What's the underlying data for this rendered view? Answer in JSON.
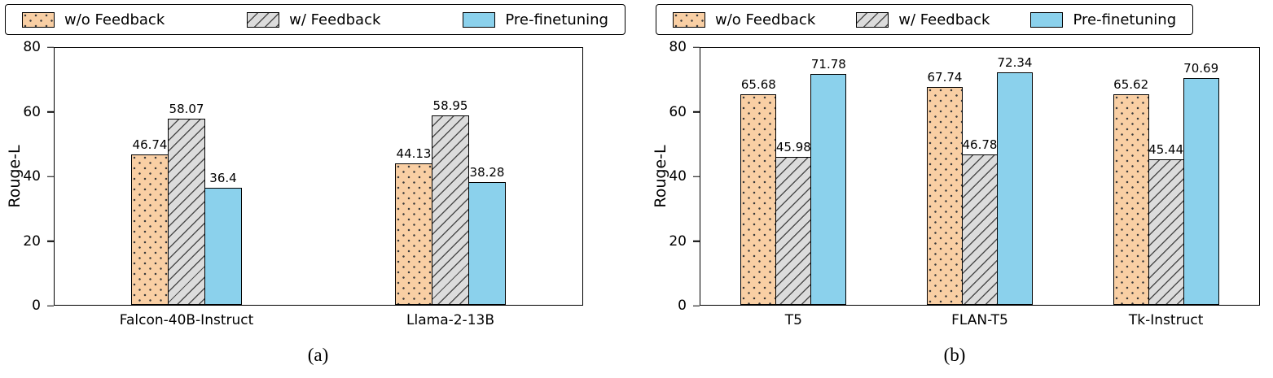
{
  "figure": {
    "background": "#ffffff"
  },
  "legend": {
    "entries": [
      {
        "label": "w/o Feedback",
        "pattern": "dots",
        "fill": "#F9CFA4"
      },
      {
        "label": "w/ Feedback",
        "pattern": "diagonal",
        "fill": "#DCDCDC"
      },
      {
        "label": "Pre-finetuning",
        "pattern": "solid",
        "fill": "#8BD1EC"
      }
    ]
  },
  "chart_data": [
    {
      "type": "bar",
      "title": "",
      "caption": "(a)",
      "xlabel": "",
      "ylabel": "Rouge-L",
      "ylim": [
        0,
        80
      ],
      "yticks": [
        0,
        20,
        40,
        60,
        80
      ],
      "grid": false,
      "legend_position": "top",
      "categories": [
        "Falcon-40B-Instruct",
        "Llama-2-13B"
      ],
      "series": [
        {
          "name": "w/o Feedback",
          "values": [
            46.74,
            44.13
          ]
        },
        {
          "name": "w/ Feedback",
          "values": [
            58.07,
            58.95
          ]
        },
        {
          "name": "Pre-finetuning",
          "values": [
            36.4,
            38.28
          ]
        }
      ]
    },
    {
      "type": "bar",
      "title": "",
      "caption": "(b)",
      "xlabel": "",
      "ylabel": "Rouge-L",
      "ylim": [
        0,
        80
      ],
      "yticks": [
        0,
        20,
        40,
        60,
        80
      ],
      "grid": false,
      "legend_position": "top",
      "categories": [
        "T5",
        "FLAN-T5",
        "Tk-Instruct"
      ],
      "series": [
        {
          "name": "w/o Feedback",
          "values": [
            65.68,
            67.74,
            65.62
          ]
        },
        {
          "name": "w/ Feedback",
          "values": [
            45.98,
            46.78,
            45.44
          ]
        },
        {
          "name": "Pre-finetuning",
          "values": [
            71.78,
            72.34,
            70.69
          ]
        }
      ]
    }
  ]
}
